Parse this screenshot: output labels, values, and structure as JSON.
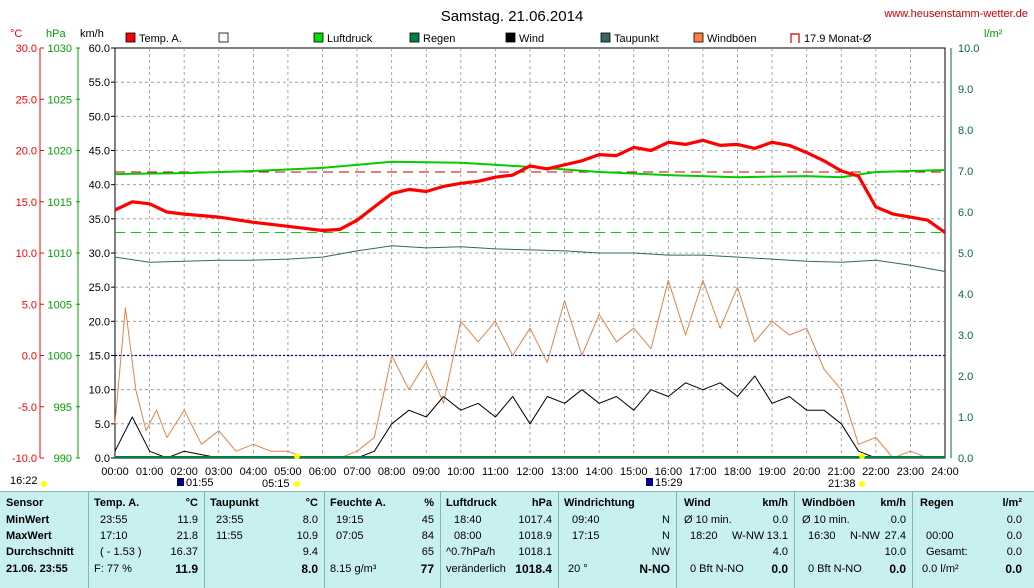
{
  "header": {
    "title": "Samstag. 21.06.2014",
    "website": "www.heusenstamm-wetter.de"
  },
  "axis_units": {
    "temp": "°C",
    "pressure": "hPa",
    "wind": "km/h",
    "rain": "l/m²"
  },
  "legend": [
    {
      "label": "Temp. A.",
      "color": "#ff0000"
    },
    {
      "label": "",
      "color": "#ffffff"
    },
    {
      "label": "Luftdruck",
      "color": "#00dd00"
    },
    {
      "label": "Regen",
      "color": "#008040"
    },
    {
      "label": "Wind",
      "color": "#000000"
    },
    {
      "label": "Taupunkt",
      "color": "#336666"
    },
    {
      "label": "Windböen",
      "color": "#ff8040"
    },
    {
      "label": "17.9 Monat-Ø",
      "color": "#cc0000"
    }
  ],
  "colors": {
    "temp": "#ff0000",
    "pressure": "#00cc00",
    "rain": "#008040",
    "wind": "#000000",
    "dew": "#336666",
    "gust": "#e0844c",
    "zero_line": "#0000cc",
    "grid": "#909090",
    "panel": "#c8f0f0",
    "title_red": "#ff0000",
    "title_green": "#00a000"
  },
  "markers": {
    "sunrise_label": "16:22",
    "sunrise_time_label": "05:15",
    "moon1": "01:55",
    "moon2": "15:29",
    "sunset": "21:38"
  },
  "chart_data": {
    "type": "line",
    "x_ticks": [
      "00:00",
      "01:00",
      "02:00",
      "03:00",
      "04:00",
      "05:00",
      "06:00",
      "07:00",
      "08:00",
      "09:00",
      "10:00",
      "11:00",
      "12:00",
      "13:00",
      "14:00",
      "15:00",
      "16:00",
      "17:00",
      "18:00",
      "19:00",
      "20:00",
      "21:00",
      "22:00",
      "23:00",
      "24:00"
    ],
    "xlim": [
      0,
      24
    ],
    "y_temp": {
      "ticks": [
        "30.0",
        "25.0",
        "20.0",
        "15.0",
        "10.0",
        "5.0",
        "0.0",
        "-5.0",
        "-10.0"
      ],
      "ylim": [
        -10,
        30
      ]
    },
    "y_pressure": {
      "ticks": [
        "1030",
        "1025",
        "1020",
        "1015",
        "1010",
        "1005",
        "1000",
        "995",
        "990"
      ],
      "ylim": [
        990,
        1030
      ]
    },
    "y_wind": {
      "ticks": [
        "60.0",
        "55.0",
        "50.0",
        "45.0",
        "40.0",
        "35.0",
        "30.0",
        "25.0",
        "20.0",
        "15.0",
        "10.0",
        "5.0",
        "0.0"
      ],
      "ylim": [
        0,
        60
      ]
    },
    "y_rain": {
      "ticks": [
        "10.0",
        "9.0",
        "8.0",
        "7.0",
        "6.0",
        "5.0",
        "4.0",
        "3.0",
        "2.0",
        "1.0",
        "0.0"
      ],
      "ylim": [
        0,
        10
      ]
    },
    "month_avg_temp": 17.9,
    "pressure_ref_line": 1012.0,
    "series": [
      {
        "name": "Temp. A.",
        "axis": "temp",
        "x": [
          0,
          0.5,
          1,
          1.5,
          2,
          3,
          4,
          5,
          6,
          6.5,
          7,
          7.5,
          8,
          8.5,
          9,
          9.5,
          10,
          10.5,
          11,
          11.5,
          12,
          12.5,
          13,
          13.5,
          14,
          14.5,
          15,
          15.5,
          16,
          16.5,
          17,
          17.5,
          18,
          18.5,
          19,
          19.5,
          20,
          20.5,
          21,
          21.5,
          22,
          22.5,
          23,
          23.5,
          24
        ],
        "y": [
          14.2,
          15.0,
          14.8,
          14.0,
          13.8,
          13.5,
          13.0,
          12.6,
          12.2,
          12.3,
          13.2,
          14.5,
          15.8,
          16.2,
          16.0,
          16.5,
          16.8,
          17.0,
          17.4,
          17.6,
          18.5,
          18.2,
          18.6,
          19.0,
          19.6,
          19.5,
          20.3,
          20.0,
          20.8,
          20.6,
          21.0,
          20.5,
          20.6,
          20.2,
          20.8,
          20.5,
          19.8,
          19.0,
          18.0,
          17.5,
          14.5,
          13.8,
          13.5,
          13.2,
          12.0
        ]
      },
      {
        "name": "Luftdruck",
        "axis": "pressure",
        "x": [
          0,
          2,
          4,
          6,
          8,
          10,
          12,
          14,
          16,
          18,
          20,
          21,
          22,
          23,
          24
        ],
        "y": [
          1017.7,
          1017.8,
          1018.0,
          1018.3,
          1018.9,
          1018.8,
          1018.4,
          1017.9,
          1017.6,
          1017.4,
          1017.5,
          1017.4,
          1017.9,
          1018.0,
          1018.1
        ]
      },
      {
        "name": "Taupunkt",
        "axis": "temp",
        "x": [
          0,
          1,
          2,
          3,
          4,
          5,
          6,
          7,
          8,
          9,
          10,
          11,
          12,
          13,
          14,
          15,
          16,
          17,
          18,
          19,
          20,
          21,
          22,
          23,
          24
        ],
        "y": [
          9.6,
          9.1,
          9.2,
          9.3,
          9.3,
          9.4,
          9.6,
          10.2,
          10.7,
          10.5,
          10.6,
          10.4,
          10.3,
          10.2,
          10.0,
          10.0,
          9.8,
          9.8,
          9.6,
          9.4,
          9.2,
          9.1,
          9.3,
          8.8,
          8.2
        ]
      },
      {
        "name": "Wind",
        "axis": "wind",
        "x": [
          0,
          0.5,
          1,
          1.5,
          2,
          3,
          4,
          5,
          6,
          7,
          7.5,
          8,
          8.5,
          9,
          9.5,
          10,
          10.5,
          11,
          11.5,
          12,
          12.5,
          13,
          13.5,
          14,
          14.5,
          15,
          15.5,
          16,
          16.5,
          17,
          17.5,
          18,
          18.5,
          19,
          19.5,
          20,
          20.5,
          21,
          21.5,
          22,
          23,
          24
        ],
        "y": [
          1,
          6,
          1,
          0,
          1,
          0,
          0,
          0,
          0,
          0,
          1,
          5,
          7,
          6,
          9,
          7,
          8,
          6,
          9,
          5,
          9,
          8,
          10,
          8,
          9,
          7,
          10,
          9,
          11,
          10,
          11,
          9,
          12,
          8,
          9,
          7,
          7,
          5,
          1,
          0,
          0,
          0
        ]
      },
      {
        "name": "Windböen",
        "axis": "wind",
        "x": [
          0,
          0.3,
          0.6,
          0.9,
          1.2,
          1.5,
          2,
          2.5,
          3,
          3.5,
          4,
          4.5,
          5,
          5.5,
          6,
          6.5,
          7,
          7.5,
          8,
          8.5,
          9,
          9.5,
          10,
          10.5,
          11,
          11.5,
          12,
          12.5,
          13,
          13.5,
          14,
          14.5,
          15,
          15.5,
          16,
          16.5,
          17,
          17.5,
          18,
          18.5,
          19,
          19.5,
          20,
          20.5,
          21,
          21.5,
          22,
          22.5,
          23,
          23.5,
          24
        ],
        "y": [
          5,
          22,
          10,
          4,
          7,
          3,
          7,
          2,
          4,
          1,
          2,
          1,
          1,
          0,
          0,
          0,
          1,
          3,
          15,
          10,
          14,
          8,
          20,
          17,
          20,
          15,
          19,
          14,
          23,
          15,
          21,
          17,
          19,
          16,
          26,
          18,
          26,
          19,
          25,
          17,
          20,
          18,
          19,
          13,
          10,
          2,
          3,
          0,
          1,
          0,
          0
        ]
      }
    ]
  },
  "table": {
    "sensor": {
      "header": "Sensor",
      "rows": [
        "MinWert",
        "MaxWert",
        "Durchschnitt"
      ],
      "footer": "21.06. 23:55"
    },
    "temp": {
      "header": "Temp. A.",
      "unit": "°C",
      "rows": [
        [
          "23:55",
          "11.9"
        ],
        [
          "17:10",
          "21.8"
        ],
        [
          "( - 1.53 )",
          "16.37"
        ]
      ],
      "footer": [
        "F: 77 %",
        "11.9"
      ]
    },
    "dew": {
      "header": "Taupunkt",
      "unit": "°C",
      "rows": [
        [
          "23:55",
          "8.0"
        ],
        [
          "11:55",
          "10.9"
        ],
        [
          "",
          "9.4"
        ]
      ],
      "footer": [
        "",
        "8.0"
      ]
    },
    "hum": {
      "header": "Feuchte A.",
      "unit": "%",
      "rows": [
        [
          "19:15",
          "45"
        ],
        [
          "07:05",
          "84"
        ],
        [
          "",
          "65"
        ]
      ],
      "footer": [
        "8.15 g/m³",
        "77"
      ]
    },
    "press": {
      "header": "Luftdruck",
      "unit": "hPa",
      "rows": [
        [
          "18:40",
          "1017.4"
        ],
        [
          "08:00",
          "1018.9"
        ],
        [
          "^0.7hPa/h",
          "1018.1"
        ]
      ],
      "footer": [
        "veränderlich",
        "1018.4"
      ]
    },
    "wdir": {
      "header": "Windrichtung",
      "rows": [
        [
          "09:40",
          "N"
        ],
        [
          "17:15",
          "N"
        ],
        [
          "",
          "NW"
        ]
      ],
      "footer": [
        "20 °",
        "N-NO"
      ]
    },
    "wind": {
      "header": "Wind",
      "unit": "km/h",
      "rows": [
        [
          "Ø 10 min.",
          "",
          "0.0"
        ],
        [
          "18:20",
          "W-NW",
          "13.1"
        ],
        [
          "",
          "",
          "4.0"
        ]
      ],
      "footer": [
        "0 Bft N-NO",
        "0.0"
      ]
    },
    "gust": {
      "header": "Windböen",
      "unit": "km/h",
      "rows": [
        [
          "Ø 10 min.",
          "",
          "0.0"
        ],
        [
          "16:30",
          "N-NW",
          "27.4"
        ],
        [
          "",
          "",
          "10.0"
        ]
      ],
      "footer": [
        "0 Bft N-NO",
        "0.0"
      ]
    },
    "rain": {
      "header": "Regen",
      "unit": "l/m²",
      "rows": [
        [
          "",
          "0.0"
        ],
        [
          "00:00",
          "0.0"
        ],
        [
          "Gesamt:",
          "0.0"
        ]
      ],
      "footer": [
        "0.0 l/m²",
        "0.0"
      ]
    }
  }
}
